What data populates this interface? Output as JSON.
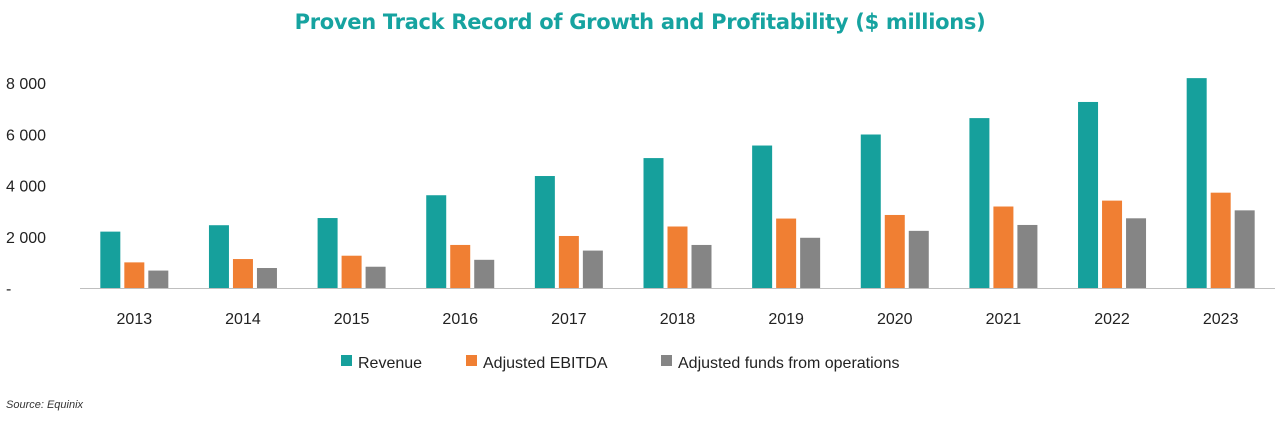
{
  "chart_data": {
    "type": "bar",
    "title": "Proven Track Record of Growth and Profitability ($ millions)",
    "xlabel": "",
    "ylabel": "",
    "categories": [
      "2013",
      "2014",
      "2015",
      "2016",
      "2017",
      "2018",
      "2019",
      "2020",
      "2021",
      "2022",
      "2023"
    ],
    "series": [
      {
        "name": "Revenue",
        "color": "#16a09c",
        "values": [
          2200,
          2450,
          2730,
          3620,
          4370,
          5070,
          5560,
          5990,
          6630,
          7260,
          8190
        ]
      },
      {
        "name": "Adjusted EBITDA",
        "color": "#f07f33",
        "values": [
          1000,
          1130,
          1260,
          1680,
          2030,
          2400,
          2710,
          2850,
          3180,
          3410,
          3720
        ]
      },
      {
        "name": "Adjusted funds from operations",
        "color": "#858585",
        "values": [
          680,
          780,
          830,
          1100,
          1460,
          1680,
          1960,
          2230,
          2460,
          2720,
          3030
        ]
      }
    ],
    "ylim": [
      0,
      8000
    ],
    "yticks": [
      {
        "value": 0,
        "label": "-"
      },
      {
        "value": 2000,
        "label": "2 000"
      },
      {
        "value": 4000,
        "label": "4 000"
      },
      {
        "value": 6000,
        "label": "6 000"
      },
      {
        "value": 8000,
        "label": "8 000"
      }
    ],
    "grid": false,
    "legend_position": "bottom"
  },
  "source": "Source: Equinix"
}
